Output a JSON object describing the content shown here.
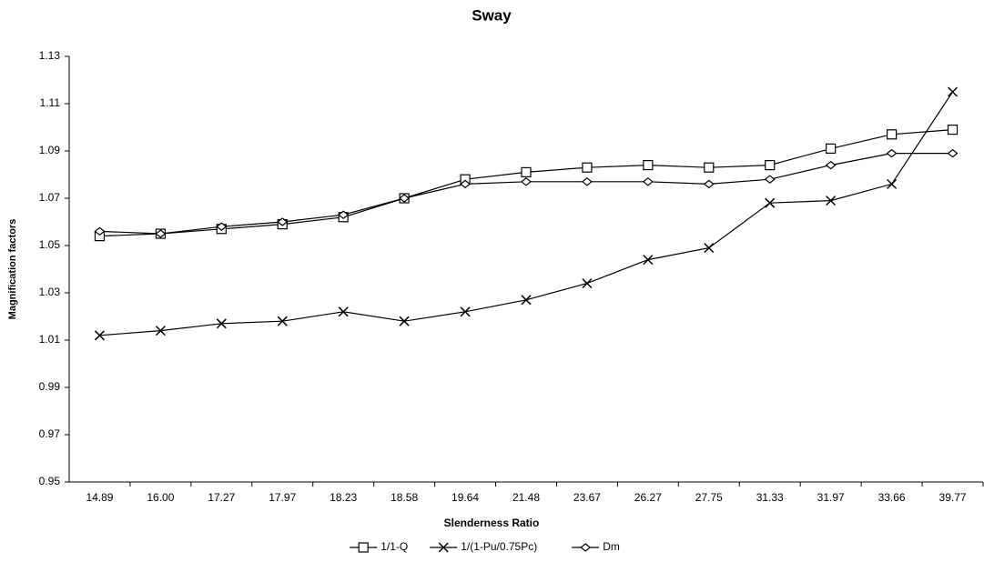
{
  "chart_data": {
    "type": "line",
    "title": "Sway",
    "x_label": "Slenderness Ratio",
    "y_label": "Magnification factors",
    "categories": [
      "14.89",
      "16.00",
      "17.27",
      "17.97",
      "18.23",
      "18.58",
      "19.64",
      "21.48",
      "23.67",
      "26.27",
      "27.75",
      "31.33",
      "31.97",
      "33.66",
      "39.77"
    ],
    "series": [
      {
        "name": "1/1-Q",
        "color": "#000000",
        "marker": "square",
        "values": [
          1.054,
          1.055,
          1.057,
          1.059,
          1.062,
          1.07,
          1.078,
          1.081,
          1.083,
          1.084,
          1.083,
          1.084,
          1.091,
          1.097,
          1.099
        ]
      },
      {
        "name": "1/(1-Pu/0.75Pc)",
        "color": "#000000",
        "marker": "x",
        "values": [
          1.012,
          1.014,
          1.017,
          1.018,
          1.022,
          1.018,
          1.022,
          1.027,
          1.034,
          1.044,
          1.049,
          1.068,
          1.069,
          1.076,
          1.115
        ]
      },
      {
        "name": "Dm",
        "color": "#000000",
        "marker": "diamond",
        "values": [
          1.056,
          1.055,
          1.058,
          1.06,
          1.063,
          1.07,
          1.076,
          1.077,
          1.077,
          1.077,
          1.076,
          1.078,
          1.084,
          1.089,
          1.089
        ]
      }
    ],
    "ylim": [
      0.95,
      1.13
    ],
    "yticks": [
      0.95,
      0.97,
      0.99,
      1.01,
      1.03,
      1.05,
      1.07,
      1.09,
      1.11,
      1.13
    ],
    "grid": false,
    "legend": "bottom"
  }
}
